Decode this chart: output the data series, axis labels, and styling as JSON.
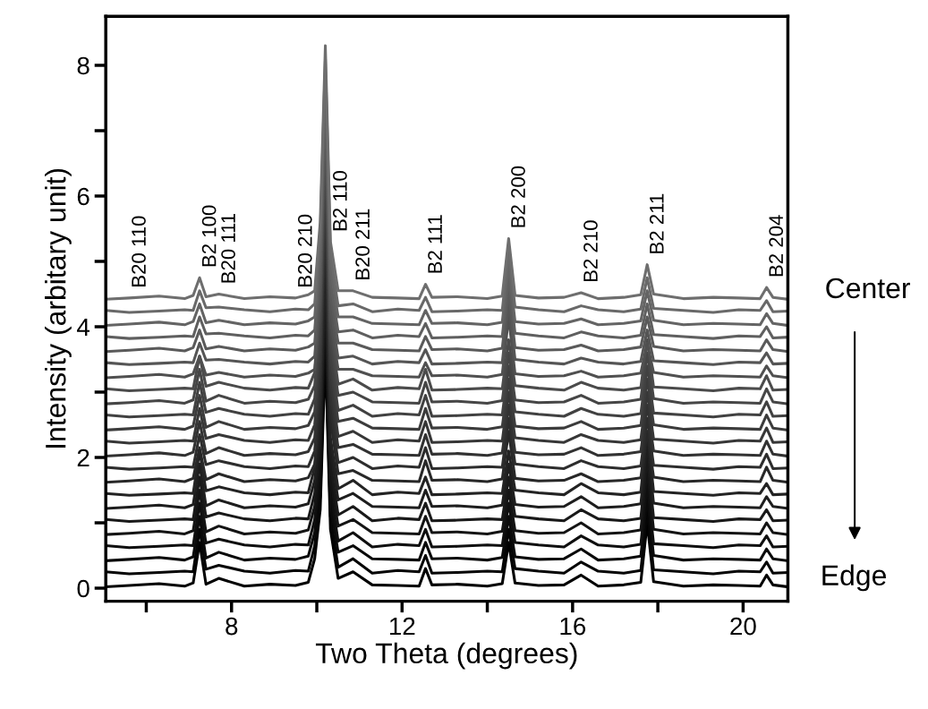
{
  "chart_data": {
    "type": "line",
    "xlabel": "Two Theta (degrees)",
    "ylabel": "Intensity (arbitary unit)",
    "xlim": [
      5.05,
      21.05
    ],
    "ylim": [
      -0.2,
      8.75
    ],
    "xticks": [
      {
        "value": 6,
        "label": null
      },
      8,
      {
        "value": 10,
        "label": null
      },
      12,
      {
        "value": 14,
        "label": null
      },
      16,
      {
        "value": 18,
        "label": null
      },
      20
    ],
    "yticks": [
      0,
      {
        "value": 1,
        "label": null
      },
      2,
      {
        "value": 3,
        "label": null
      },
      4,
      {
        "value": 5,
        "label": null
      },
      6,
      {
        "value": 7,
        "label": null
      },
      8
    ],
    "grid": false,
    "legend": false,
    "marker": "none",
    "line_style": "solid",
    "x": [
      5.05,
      5.6,
      6.3,
      6.9,
      7.1,
      7.25,
      7.4,
      7.7,
      8.3,
      8.9,
      9.5,
      9.8,
      9.95,
      10.08,
      10.2,
      10.32,
      10.5,
      10.85,
      11.3,
      11.9,
      12.4,
      12.55,
      12.7,
      13.3,
      14.0,
      14.35,
      14.5,
      14.65,
      15.2,
      15.8,
      16.2,
      16.6,
      17.2,
      17.6,
      17.75,
      17.9,
      18.6,
      19.3,
      19.9,
      20.4,
      20.55,
      20.7,
      21.05
    ],
    "series": [
      {
        "color": "#000000",
        "values": [
          0.02,
          0.04,
          0.07,
          0.03,
          0.08,
          0.7,
          0.06,
          0.15,
          0.03,
          0.06,
          0.04,
          0.09,
          0.45,
          1.2,
          3.6,
          0.9,
          0.15,
          0.25,
          0.05,
          0.04,
          0.03,
          0.3,
          0.05,
          0.06,
          0.03,
          0.07,
          0.7,
          0.08,
          0.04,
          0.05,
          0.2,
          0.03,
          0.05,
          0.09,
          1.0,
          0.1,
          0.03,
          0.05,
          0.04,
          0.03,
          0.2,
          0.05,
          0.02
        ]
      },
      {
        "color": "#050505",
        "values": [
          0.25,
          0.22,
          0.24,
          0.26,
          0.25,
          0.9,
          0.29,
          0.35,
          0.26,
          0.23,
          0.27,
          0.26,
          0.65,
          1.4,
          3.8,
          1.1,
          0.32,
          0.45,
          0.23,
          0.27,
          0.25,
          0.5,
          0.23,
          0.24,
          0.26,
          0.25,
          0.9,
          0.3,
          0.26,
          0.23,
          0.4,
          0.26,
          0.23,
          0.27,
          1.2,
          0.28,
          0.25,
          0.22,
          0.26,
          0.25,
          0.4,
          0.23,
          0.24
        ]
      },
      {
        "color": "#0a0a0a",
        "values": [
          0.42,
          0.44,
          0.47,
          0.43,
          0.48,
          1.1,
          0.46,
          0.55,
          0.43,
          0.46,
          0.44,
          0.49,
          0.85,
          1.6,
          4.0,
          1.3,
          0.55,
          0.65,
          0.45,
          0.44,
          0.43,
          0.7,
          0.45,
          0.46,
          0.43,
          0.47,
          1.1,
          0.48,
          0.44,
          0.45,
          0.6,
          0.43,
          0.45,
          0.49,
          1.4,
          0.5,
          0.43,
          0.45,
          0.44,
          0.43,
          0.6,
          0.45,
          0.42
        ]
      },
      {
        "color": "#0f0f0f",
        "values": [
          0.65,
          0.62,
          0.64,
          0.66,
          0.65,
          1.3,
          0.69,
          0.75,
          0.66,
          0.63,
          0.67,
          0.66,
          1.05,
          1.8,
          4.2,
          1.5,
          0.72,
          0.85,
          0.63,
          0.67,
          0.65,
          0.9,
          0.63,
          0.64,
          0.66,
          0.65,
          1.3,
          0.7,
          0.66,
          0.63,
          0.8,
          0.66,
          0.63,
          0.67,
          1.6,
          0.68,
          0.65,
          0.62,
          0.66,
          0.65,
          0.8,
          0.63,
          0.64
        ]
      },
      {
        "color": "#141414",
        "values": [
          0.82,
          0.84,
          0.87,
          0.83,
          0.88,
          1.5,
          0.86,
          0.95,
          0.83,
          0.86,
          0.84,
          0.89,
          1.25,
          2.0,
          4.4,
          1.7,
          0.95,
          1.05,
          0.85,
          0.84,
          0.83,
          1.1,
          0.85,
          0.86,
          0.83,
          0.87,
          1.5,
          0.88,
          0.84,
          0.85,
          1.0,
          0.83,
          0.85,
          0.89,
          1.8,
          0.9,
          0.83,
          0.85,
          0.84,
          0.83,
          1.0,
          0.85,
          0.82
        ]
      },
      {
        "color": "#191919",
        "values": [
          1.05,
          1.02,
          1.04,
          1.06,
          1.05,
          1.7,
          1.09,
          1.15,
          1.06,
          1.03,
          1.07,
          1.06,
          1.45,
          2.2,
          4.6,
          1.9,
          1.12,
          1.25,
          1.03,
          1.07,
          1.05,
          1.3,
          1.03,
          1.04,
          1.06,
          1.05,
          1.7,
          1.1,
          1.06,
          1.03,
          1.2,
          1.06,
          1.03,
          1.07,
          2.0,
          1.08,
          1.05,
          1.02,
          1.06,
          1.05,
          1.2,
          1.03,
          1.04
        ]
      },
      {
        "color": "#1e1e1e",
        "values": [
          1.22,
          1.24,
          1.27,
          1.23,
          1.28,
          1.9,
          1.26,
          1.35,
          1.23,
          1.26,
          1.24,
          1.29,
          1.65,
          2.4,
          4.8,
          2.1,
          1.35,
          1.45,
          1.25,
          1.24,
          1.23,
          1.5,
          1.25,
          1.26,
          1.23,
          1.27,
          1.9,
          1.28,
          1.24,
          1.25,
          1.4,
          1.23,
          1.25,
          1.29,
          2.2,
          1.3,
          1.23,
          1.25,
          1.24,
          1.23,
          1.4,
          1.25,
          1.22
        ]
      },
      {
        "color": "#232323",
        "values": [
          1.45,
          1.42,
          1.44,
          1.46,
          1.45,
          2.1,
          1.49,
          1.55,
          1.46,
          1.43,
          1.47,
          1.46,
          1.85,
          2.6,
          5.0,
          2.3,
          1.52,
          1.65,
          1.43,
          1.47,
          1.45,
          1.7,
          1.43,
          1.44,
          1.46,
          1.45,
          2.1,
          1.5,
          1.46,
          1.43,
          1.6,
          1.46,
          1.43,
          1.47,
          2.4,
          1.48,
          1.45,
          1.42,
          1.46,
          1.45,
          1.6,
          1.43,
          1.44
        ]
      },
      {
        "color": "#282828",
        "values": [
          1.62,
          1.64,
          1.67,
          1.63,
          1.68,
          2.15,
          1.66,
          1.75,
          1.63,
          1.66,
          1.64,
          1.69,
          1.9,
          2.9,
          5.5,
          2.6,
          1.75,
          1.8,
          1.65,
          1.64,
          1.63,
          1.95,
          1.65,
          1.66,
          1.63,
          1.67,
          2.4,
          1.68,
          1.64,
          1.65,
          1.75,
          1.63,
          1.65,
          1.69,
          2.4,
          1.7,
          1.63,
          1.65,
          1.64,
          1.63,
          1.85,
          1.65,
          1.62
        ]
      },
      {
        "color": "#2d2d2d",
        "values": [
          1.85,
          1.82,
          1.84,
          1.86,
          1.85,
          2.35,
          1.89,
          1.95,
          1.86,
          1.83,
          1.87,
          1.86,
          2.1,
          3.1,
          5.7,
          2.8,
          1.92,
          2.0,
          1.83,
          1.87,
          1.85,
          2.15,
          1.83,
          1.84,
          1.86,
          1.85,
          2.6,
          1.9,
          1.86,
          1.83,
          1.95,
          1.86,
          1.83,
          1.87,
          2.6,
          1.88,
          1.85,
          1.82,
          1.86,
          1.85,
          2.05,
          1.83,
          1.84
        ]
      },
      {
        "color": "#323232",
        "values": [
          2.02,
          2.04,
          2.07,
          2.03,
          2.08,
          2.55,
          2.06,
          2.15,
          2.03,
          2.06,
          2.04,
          2.09,
          2.3,
          3.3,
          5.9,
          3.0,
          2.15,
          2.2,
          2.05,
          2.04,
          2.03,
          2.35,
          2.05,
          2.06,
          2.03,
          2.07,
          2.8,
          2.08,
          2.04,
          2.05,
          2.15,
          2.03,
          2.05,
          2.09,
          2.8,
          2.1,
          2.03,
          2.05,
          2.04,
          2.03,
          2.25,
          2.05,
          2.02
        ]
      },
      {
        "color": "#373737",
        "values": [
          2.25,
          2.22,
          2.24,
          2.26,
          2.25,
          2.75,
          2.29,
          2.35,
          2.26,
          2.23,
          2.27,
          2.26,
          2.5,
          3.5,
          6.1,
          3.2,
          2.32,
          2.4,
          2.23,
          2.27,
          2.25,
          2.55,
          2.23,
          2.24,
          2.26,
          2.25,
          3.0,
          2.3,
          2.26,
          2.23,
          2.35,
          2.26,
          2.23,
          2.27,
          3.0,
          2.28,
          2.25,
          2.22,
          2.26,
          2.25,
          2.45,
          2.23,
          2.24
        ]
      },
      {
        "color": "#3c3c3c",
        "values": [
          2.42,
          2.44,
          2.47,
          2.43,
          2.48,
          2.95,
          2.46,
          2.55,
          2.43,
          2.46,
          2.44,
          2.49,
          2.7,
          3.7,
          6.3,
          3.4,
          2.55,
          2.6,
          2.45,
          2.44,
          2.43,
          2.75,
          2.45,
          2.46,
          2.43,
          2.47,
          3.2,
          2.48,
          2.44,
          2.45,
          2.55,
          2.43,
          2.45,
          2.49,
          3.2,
          2.5,
          2.43,
          2.45,
          2.44,
          2.43,
          2.65,
          2.45,
          2.42
        ]
      },
      {
        "color": "#414141",
        "values": [
          2.65,
          2.62,
          2.64,
          2.66,
          2.65,
          3.15,
          2.69,
          2.75,
          2.66,
          2.63,
          2.67,
          2.66,
          2.9,
          3.9,
          6.5,
          3.6,
          2.72,
          2.8,
          2.63,
          2.67,
          2.65,
          2.95,
          2.63,
          2.64,
          2.66,
          2.65,
          3.4,
          2.7,
          2.66,
          2.63,
          2.75,
          2.66,
          2.63,
          2.67,
          3.4,
          2.68,
          2.65,
          2.62,
          2.66,
          2.65,
          2.85,
          2.63,
          2.64
        ]
      },
      {
        "color": "#464646",
        "values": [
          2.82,
          2.84,
          2.87,
          2.83,
          2.88,
          3.35,
          2.86,
          2.95,
          2.83,
          2.86,
          2.84,
          2.89,
          3.1,
          4.1,
          6.7,
          3.8,
          2.95,
          3.0,
          2.85,
          2.84,
          2.83,
          3.15,
          2.85,
          2.86,
          2.83,
          2.87,
          3.6,
          2.88,
          2.84,
          2.85,
          2.95,
          2.83,
          2.85,
          2.89,
          3.6,
          2.9,
          2.83,
          2.85,
          2.84,
          2.83,
          3.05,
          2.85,
          2.82
        ]
      },
      {
        "color": "#4b4b4b",
        "values": [
          3.05,
          3.02,
          3.04,
          3.06,
          3.05,
          3.55,
          3.09,
          3.15,
          3.06,
          3.03,
          3.07,
          3.06,
          3.3,
          4.3,
          6.9,
          4.0,
          3.12,
          3.2,
          3.03,
          3.07,
          3.05,
          3.35,
          3.03,
          3.04,
          3.06,
          3.05,
          3.8,
          3.1,
          3.06,
          3.03,
          3.15,
          3.06,
          3.03,
          3.07,
          3.8,
          3.08,
          3.05,
          3.02,
          3.06,
          3.05,
          3.25,
          3.03,
          3.04
        ]
      },
      {
        "color": "#505050",
        "values": [
          3.22,
          3.24,
          3.27,
          3.23,
          3.28,
          3.55,
          3.26,
          3.3,
          3.23,
          3.26,
          3.24,
          3.29,
          3.35,
          4.4,
          7.1,
          4.1,
          3.35,
          3.35,
          3.25,
          3.24,
          3.23,
          3.45,
          3.25,
          3.26,
          3.23,
          3.27,
          4.15,
          3.28,
          3.24,
          3.25,
          3.32,
          3.23,
          3.25,
          3.29,
          3.75,
          3.3,
          3.23,
          3.25,
          3.24,
          3.23,
          3.4,
          3.25,
          3.22
        ]
      },
      {
        "color": "#555555",
        "values": [
          3.45,
          3.42,
          3.44,
          3.46,
          3.45,
          3.75,
          3.49,
          3.5,
          3.46,
          3.43,
          3.47,
          3.46,
          3.55,
          4.6,
          7.3,
          4.3,
          3.52,
          3.55,
          3.43,
          3.47,
          3.45,
          3.65,
          3.43,
          3.44,
          3.46,
          3.45,
          4.35,
          3.5,
          3.46,
          3.43,
          3.52,
          3.46,
          3.43,
          3.47,
          3.95,
          3.48,
          3.45,
          3.42,
          3.46,
          3.45,
          3.6,
          3.43,
          3.44
        ]
      },
      {
        "color": "#5a5a5a",
        "values": [
          3.62,
          3.64,
          3.67,
          3.63,
          3.68,
          3.95,
          3.66,
          3.7,
          3.63,
          3.66,
          3.64,
          3.69,
          3.75,
          4.8,
          7.5,
          4.5,
          3.75,
          3.75,
          3.65,
          3.64,
          3.63,
          3.85,
          3.65,
          3.66,
          3.63,
          3.67,
          4.55,
          3.68,
          3.64,
          3.65,
          3.72,
          3.63,
          3.65,
          3.69,
          4.15,
          3.7,
          3.63,
          3.65,
          3.64,
          3.63,
          3.8,
          3.65,
          3.62
        ]
      },
      {
        "color": "#5f5f5f",
        "values": [
          3.85,
          3.82,
          3.84,
          3.86,
          3.85,
          4.15,
          3.89,
          3.9,
          3.86,
          3.83,
          3.87,
          3.86,
          3.95,
          5.0,
          7.7,
          4.7,
          3.92,
          3.95,
          3.83,
          3.87,
          3.85,
          4.05,
          3.83,
          3.84,
          3.86,
          3.85,
          4.75,
          3.9,
          3.86,
          3.83,
          3.92,
          3.86,
          3.83,
          3.87,
          4.35,
          3.88,
          3.85,
          3.82,
          3.86,
          3.85,
          4.0,
          3.83,
          3.84
        ]
      },
      {
        "color": "#646464",
        "values": [
          4.02,
          4.04,
          4.07,
          4.03,
          4.08,
          4.35,
          4.06,
          4.1,
          4.03,
          4.06,
          4.04,
          4.09,
          4.15,
          5.2,
          7.9,
          4.9,
          4.15,
          4.15,
          4.05,
          4.04,
          4.03,
          4.25,
          4.05,
          4.06,
          4.03,
          4.07,
          4.95,
          4.08,
          4.04,
          4.05,
          4.12,
          4.03,
          4.05,
          4.09,
          4.55,
          4.1,
          4.03,
          4.05,
          4.04,
          4.03,
          4.2,
          4.05,
          4.02
        ]
      },
      {
        "color": "#696969",
        "values": [
          4.25,
          4.22,
          4.24,
          4.26,
          4.25,
          4.55,
          4.29,
          4.3,
          4.26,
          4.23,
          4.27,
          4.26,
          4.35,
          5.4,
          8.1,
          5.1,
          4.32,
          4.35,
          4.23,
          4.27,
          4.25,
          4.45,
          4.23,
          4.24,
          4.26,
          4.25,
          5.15,
          4.3,
          4.26,
          4.23,
          4.32,
          4.26,
          4.23,
          4.27,
          4.75,
          4.28,
          4.25,
          4.22,
          4.26,
          4.25,
          4.4,
          4.23,
          4.24
        ]
      },
      {
        "color": "#6e6e6e",
        "values": [
          4.42,
          4.44,
          4.47,
          4.43,
          4.48,
          4.75,
          4.46,
          4.5,
          4.43,
          4.46,
          4.44,
          4.49,
          4.55,
          5.6,
          8.3,
          5.3,
          4.55,
          4.55,
          4.45,
          4.44,
          4.43,
          4.65,
          4.45,
          4.46,
          4.43,
          4.47,
          5.35,
          4.48,
          4.44,
          4.45,
          4.52,
          4.43,
          4.45,
          4.49,
          4.95,
          4.5,
          4.43,
          4.45,
          4.44,
          4.43,
          4.6,
          4.45,
          4.42
        ]
      }
    ],
    "annotations": [
      {
        "text": "B20 110",
        "x": 5.6,
        "y": 4.44
      },
      {
        "text": "B2 100",
        "x": 7.25,
        "y": 4.75
      },
      {
        "text": "B20 111",
        "x": 7.7,
        "y": 4.5
      },
      {
        "text": "B20 210",
        "x": 9.5,
        "y": 4.44
      },
      {
        "text": "B2 110",
        "x": 10.32,
        "y": 5.3
      },
      {
        "text": "B20 211",
        "x": 10.85,
        "y": 4.55
      },
      {
        "text": "B2 111",
        "x": 12.55,
        "y": 4.65
      },
      {
        "text": "B2 200",
        "x": 14.5,
        "y": 5.35
      },
      {
        "text": "B2 210",
        "x": 16.2,
        "y": 4.52
      },
      {
        "text": "B2 211",
        "x": 17.75,
        "y": 4.95
      },
      {
        "text": "B2 204",
        "x": 20.55,
        "y": 4.6
      },
      "Center",
      "Edge"
    ]
  }
}
